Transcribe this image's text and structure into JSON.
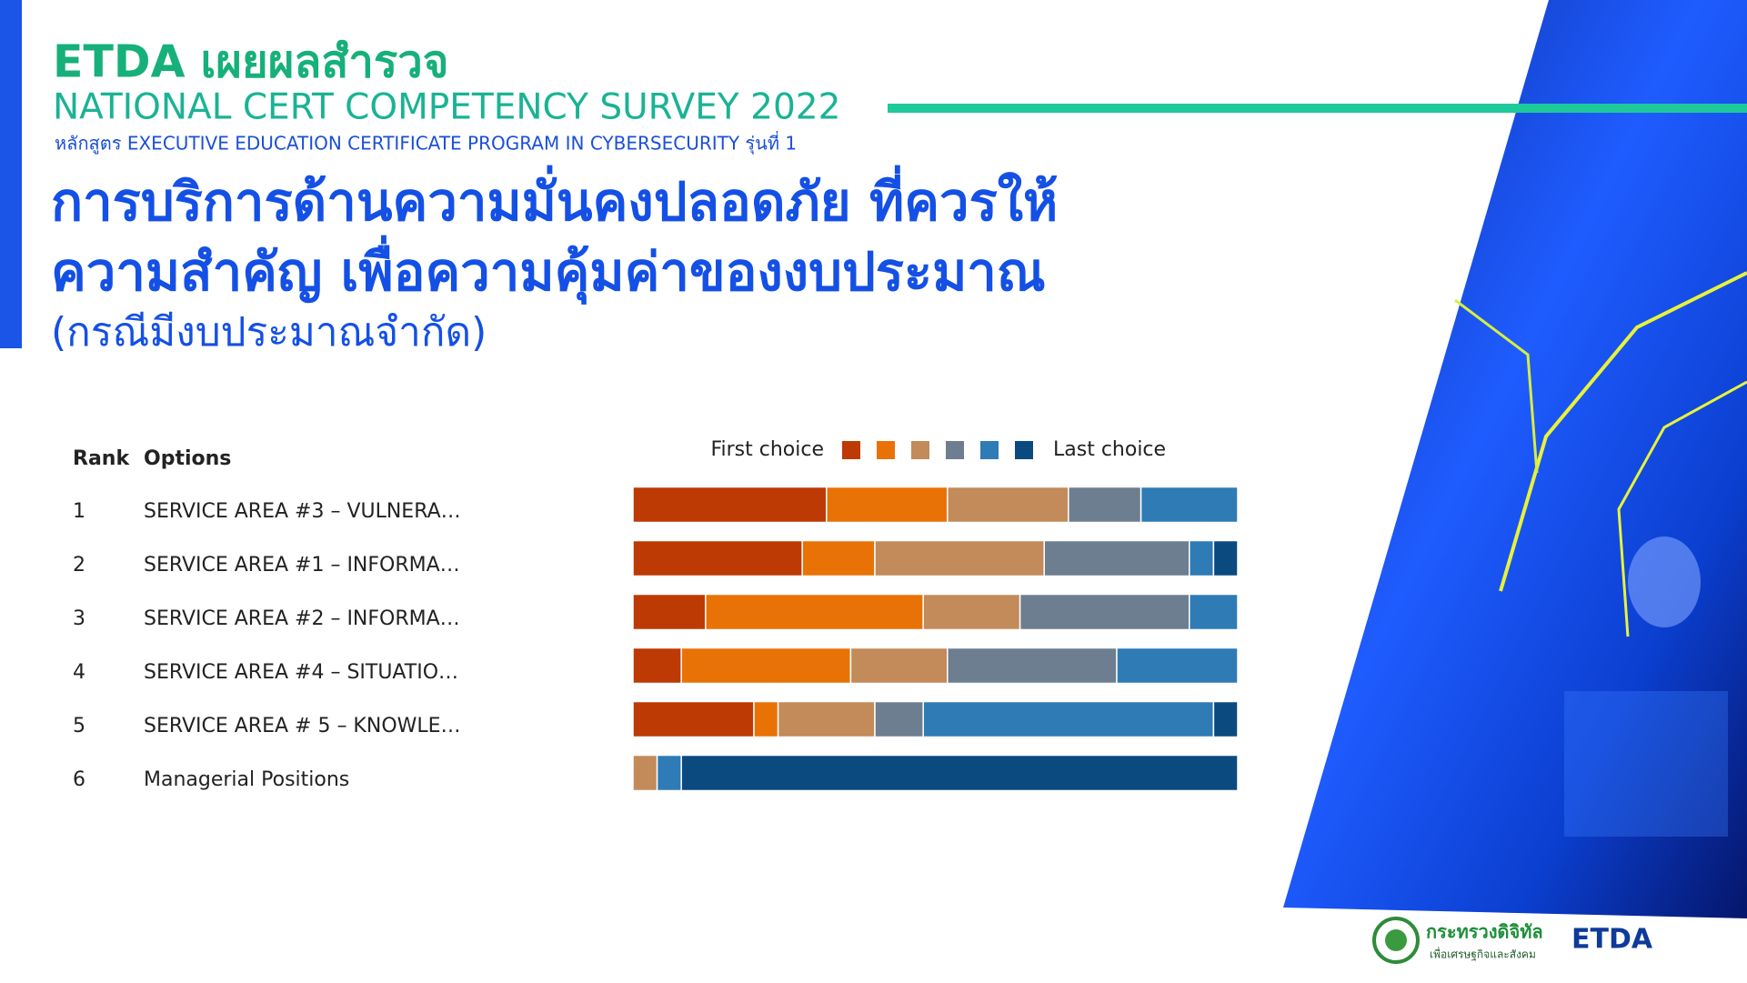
{
  "header": {
    "brand": "ETDA เผยผลสำรวจ",
    "survey": "NATIONAL CERT COMPETENCY SURVEY 2022",
    "program": "หลักสูตร EXECUTIVE EDUCATION CERTIFICATE PROGRAM IN CYBERSECURITY  รุ่นที่ 1",
    "headline": [
      "การบริการด้านความมั่นคงปลอดภัย ที่ควรให้",
      "ความสำคัญ เพื่อความคุ้มค่าของงบประมาณ"
    ],
    "note": "(กรณีมีงบประมาณจำกัด)"
  },
  "chart_data": {
    "type": "stacked-bar-ranking",
    "rank_header": "Rank",
    "options_header": "Options",
    "ranks": [
      1,
      2,
      3,
      4,
      5,
      6
    ],
    "categories": [
      "SERVICE AREA #3 – VULNERA…",
      "SERVICE AREA #1 – INFORMA…",
      "SERVICE AREA #2 – INFORMA…",
      "SERVICE AREA #4 – SITUATIO…",
      "SERVICE AREA # 5 – KNOWLE…",
      "Managerial Positions"
    ],
    "legend_first": "First choice",
    "legend_last": "Last choice",
    "xlim": [
      0,
      100
    ],
    "series": [
      {
        "color": "#bd3a05",
        "values": [
          32,
          28,
          12,
          8,
          20,
          0
        ]
      },
      {
        "color": "#e97206",
        "values": [
          20,
          12,
          36,
          28,
          4,
          0
        ]
      },
      {
        "color": "#c38a5a",
        "values": [
          20,
          28,
          16,
          16,
          16,
          4
        ]
      },
      {
        "color": "#6e7e91",
        "values": [
          12,
          24,
          28,
          28,
          8,
          0
        ]
      },
      {
        "color": "#2e7bb6",
        "values": [
          16,
          4,
          8,
          20,
          48,
          4
        ]
      },
      {
        "color": "#0b4a7f",
        "values": [
          0,
          4,
          0,
          0,
          4,
          92
        ]
      }
    ]
  },
  "footer": {
    "ministry": "กระทรวงดิจิทัล",
    "ministry_sub": "เพื่อเศรษฐกิจและสังคม",
    "logo": "ETDA"
  }
}
